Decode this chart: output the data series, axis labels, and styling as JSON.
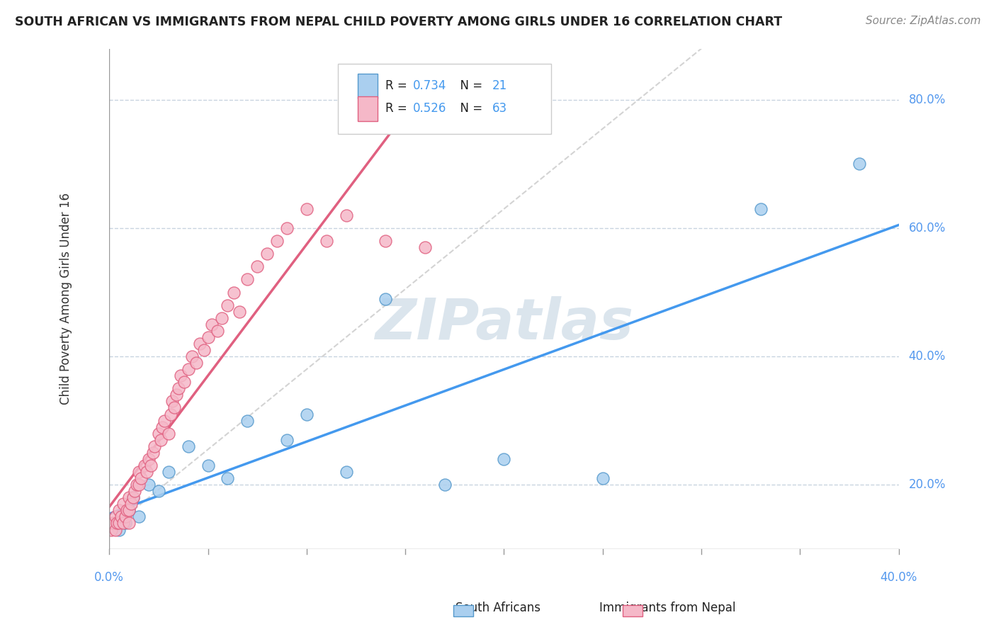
{
  "title": "SOUTH AFRICAN VS IMMIGRANTS FROM NEPAL CHILD POVERTY AMONG GIRLS UNDER 16 CORRELATION CHART",
  "source": "Source: ZipAtlas.com",
  "ylabel": "Child Poverty Among Girls Under 16",
  "ylabel_ticks": [
    "20.0%",
    "40.0%",
    "60.0%",
    "80.0%"
  ],
  "ytick_vals": [
    0.2,
    0.4,
    0.6,
    0.8
  ],
  "xmin": 0.0,
  "xmax": 0.4,
  "ymin": 0.1,
  "ymax": 0.88,
  "south_africans": {
    "label": "South Africans",
    "color": "#aacfef",
    "edge_color": "#5599cc",
    "R": 0.734,
    "N": 21,
    "line_color": "#4499ee",
    "x": [
      0.005,
      0.008,
      0.01,
      0.012,
      0.015,
      0.02,
      0.025,
      0.03,
      0.04,
      0.05,
      0.06,
      0.07,
      0.09,
      0.1,
      0.12,
      0.14,
      0.17,
      0.2,
      0.25,
      0.33,
      0.38
    ],
    "y": [
      0.13,
      0.14,
      0.16,
      0.18,
      0.15,
      0.2,
      0.19,
      0.22,
      0.26,
      0.23,
      0.21,
      0.3,
      0.27,
      0.31,
      0.22,
      0.49,
      0.2,
      0.24,
      0.21,
      0.63,
      0.7
    ]
  },
  "immigrants_nepal": {
    "label": "Immigrants from Nepal",
    "color": "#f5b8c8",
    "edge_color": "#e06080",
    "R": 0.526,
    "N": 63,
    "line_color": "#e06080",
    "x": [
      0.001,
      0.001,
      0.002,
      0.003,
      0.003,
      0.004,
      0.005,
      0.005,
      0.006,
      0.007,
      0.007,
      0.008,
      0.009,
      0.01,
      0.01,
      0.01,
      0.011,
      0.012,
      0.013,
      0.014,
      0.015,
      0.015,
      0.016,
      0.018,
      0.019,
      0.02,
      0.021,
      0.022,
      0.023,
      0.025,
      0.026,
      0.027,
      0.028,
      0.03,
      0.031,
      0.032,
      0.033,
      0.034,
      0.035,
      0.036,
      0.038,
      0.04,
      0.042,
      0.044,
      0.046,
      0.048,
      0.05,
      0.052,
      0.055,
      0.057,
      0.06,
      0.063,
      0.066,
      0.07,
      0.075,
      0.08,
      0.085,
      0.09,
      0.1,
      0.11,
      0.12,
      0.14,
      0.16
    ],
    "y": [
      0.13,
      0.14,
      0.14,
      0.13,
      0.15,
      0.14,
      0.14,
      0.16,
      0.15,
      0.14,
      0.17,
      0.15,
      0.16,
      0.14,
      0.16,
      0.18,
      0.17,
      0.18,
      0.19,
      0.2,
      0.2,
      0.22,
      0.21,
      0.23,
      0.22,
      0.24,
      0.23,
      0.25,
      0.26,
      0.28,
      0.27,
      0.29,
      0.3,
      0.28,
      0.31,
      0.33,
      0.32,
      0.34,
      0.35,
      0.37,
      0.36,
      0.38,
      0.4,
      0.39,
      0.42,
      0.41,
      0.43,
      0.45,
      0.44,
      0.46,
      0.48,
      0.5,
      0.47,
      0.52,
      0.54,
      0.56,
      0.58,
      0.6,
      0.63,
      0.58,
      0.62,
      0.58,
      0.57
    ]
  },
  "watermark": "ZIPatlas",
  "background_color": "#ffffff",
  "grid_color": "#c8d4e0",
  "legend_box_color": "#ffffff"
}
